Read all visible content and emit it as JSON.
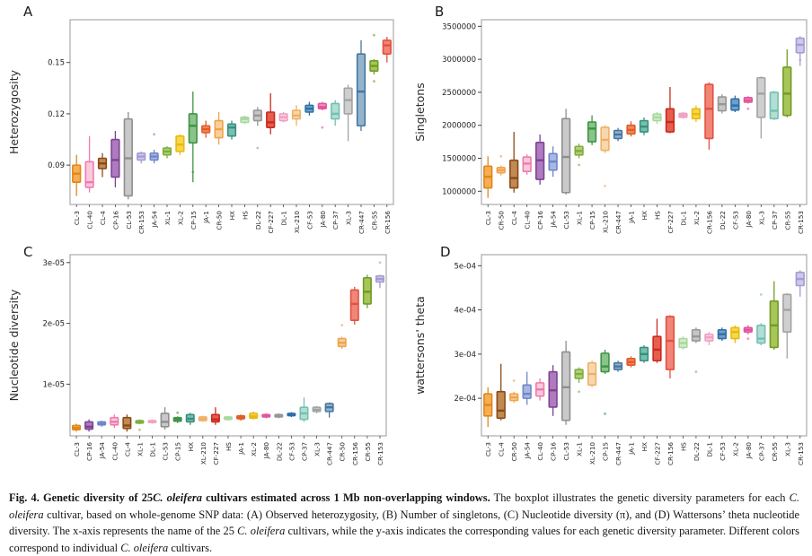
{
  "figure": {
    "caption_segments": [
      {
        "text": "Fig. 4. ",
        "bold": true
      },
      {
        "text": "Genetic diversity of 25",
        "bold": true
      },
      {
        "text": "C. oleifera",
        "bold": true,
        "italic": true
      },
      {
        "text": " cultivars estimated across 1 Mb non-overlapping windows.",
        "bold": true
      },
      {
        "text": " The boxplot illustrates the genetic diversity parameters for each "
      },
      {
        "text": "C. oleifera",
        "italic": true
      },
      {
        "text": " cultivar, based on whole-genome SNP data: (A) Observed heterozygosity, (B) Number of singletons, (C) Nucleotide diversity (π), and (D) Wattersons’ theta nucleotide diversity. The x-axis represents the name of the 25 "
      },
      {
        "text": "C. oleifera",
        "italic": true
      },
      {
        "text": " cultivars, while the y-axis indicates the corresponding values for each genetic diversity parameter. Different colors correspond to individual "
      },
      {
        "text": "C. oleifera",
        "italic": true
      },
      {
        "text": " cultivars."
      }
    ]
  },
  "palette": {
    "CL-3": {
      "stroke": "#E0861C",
      "fill": "#F6AE52"
    },
    "CL-40": {
      "stroke": "#EF7BAC",
      "fill": "#F9C9DE"
    },
    "CL-4": {
      "stroke": "#8A4A18",
      "fill": "#C18A50"
    },
    "CP-16": {
      "stroke": "#7E4295",
      "fill": "#AF7BBF"
    },
    "CL-53": {
      "stroke": "#8E8E8E",
      "fill": "#C9C9C9"
    },
    "CR-153": {
      "stroke": "#A59BD3",
      "fill": "#CEC8EA"
    },
    "JA-54": {
      "stroke": "#6F86C8",
      "fill": "#A9B7E3"
    },
    "XL-1": {
      "stroke": "#7FAE3E",
      "fill": "#B2CF77"
    },
    "XL-2": {
      "stroke": "#E9B90F",
      "fill": "#F6D84A"
    },
    "CP-15": {
      "stroke": "#3F9347",
      "fill": "#8AC48A"
    },
    "JA-1": {
      "stroke": "#E25A2A",
      "fill": "#F0895C"
    },
    "CR-50": {
      "stroke": "#F0A24B",
      "fill": "#F8CF9E"
    },
    "HX": {
      "stroke": "#37917F",
      "fill": "#79BEAF"
    },
    "HS": {
      "stroke": "#A8D89E",
      "fill": "#D2EBCB"
    },
    "DL-22": {
      "stroke": "#979797",
      "fill": "#C6C6C6"
    },
    "CF-227": {
      "stroke": "#C92A20",
      "fill": "#E65E4D"
    },
    "DL-1": {
      "stroke": "#F0A0C2",
      "fill": "#F9CFE0"
    },
    "XL-210": {
      "stroke": "#EFB066",
      "fill": "#F7D8AE"
    },
    "CF-53": {
      "stroke": "#2F6FA7",
      "fill": "#6E9FCB"
    },
    "JA-80": {
      "stroke": "#E2559E",
      "fill": "#EF90C2"
    },
    "CP-37": {
      "stroke": "#72C0B2",
      "fill": "#B2DED4"
    },
    "XL-3": {
      "stroke": "#A3A3A3",
      "fill": "#CFCFCF"
    },
    "CR-447": {
      "stroke": "#47769F",
      "fill": "#93B4CD"
    },
    "CR-55": {
      "stroke": "#709B28",
      "fill": "#A8C558"
    },
    "CR-156": {
      "stroke": "#E25140",
      "fill": "#F18577"
    }
  },
  "chart_data": [
    {
      "panel": "A",
      "type": "boxplot",
      "ylabel": "Heterozygosity",
      "yticks": [
        0.09,
        0.12,
        0.15
      ],
      "ytick_labels": [
        "0.09",
        "0.12",
        "0.15"
      ],
      "ylim": [
        0.067,
        0.175
      ],
      "categories": [
        "CL-3",
        "CL-40",
        "CL-4",
        "CP-16",
        "CL-53",
        "CR-153",
        "JA-54",
        "XL-1",
        "XL-2",
        "CP-15",
        "JA-1",
        "CR-50",
        "HX",
        "HS",
        "DL-22",
        "CF-227",
        "DL-1",
        "XL-210",
        "CF-53",
        "JA-80",
        "CP-37",
        "XL-3",
        "CR-447",
        "CR-55",
        "CR-156"
      ],
      "boxes": [
        [
          0.072,
          0.08,
          0.085,
          0.09,
          0.096
        ],
        [
          0.074,
          0.077,
          0.08,
          0.092,
          0.107
        ],
        [
          0.083,
          0.088,
          0.091,
          0.094,
          0.097
        ],
        [
          0.077,
          0.083,
          0.093,
          0.105,
          0.11
        ],
        [
          0.07,
          0.072,
          0.094,
          0.117,
          0.121
        ],
        [
          0.091,
          0.093,
          0.095,
          0.097,
          0.098
        ],
        [
          0.091,
          0.093,
          0.095,
          0.097,
          0.099
        ],
        [
          0.094,
          0.096,
          0.098,
          0.1,
          0.101
        ],
        [
          0.096,
          0.098,
          0.102,
          0.107,
          0.108
        ],
        [
          0.08,
          0.103,
          0.113,
          0.12,
          0.133
        ],
        [
          0.106,
          0.109,
          0.111,
          0.113,
          0.116
        ],
        [
          0.102,
          0.106,
          0.111,
          0.116,
          0.121
        ],
        [
          0.105,
          0.107,
          0.112,
          0.114,
          0.116
        ],
        [
          0.114,
          0.115,
          0.117,
          0.118,
          0.119
        ],
        [
          0.113,
          0.116,
          0.119,
          0.122,
          0.124
        ],
        [
          0.108,
          0.112,
          0.115,
          0.121,
          0.132
        ],
        [
          0.115,
          0.116,
          0.118,
          0.12,
          0.121
        ],
        [
          0.113,
          0.117,
          0.119,
          0.122,
          0.125
        ],
        [
          0.119,
          0.121,
          0.123,
          0.125,
          0.127
        ],
        [
          0.122,
          0.123,
          0.124,
          0.126,
          0.127
        ],
        [
          0.113,
          0.117,
          0.12,
          0.126,
          0.128
        ],
        [
          0.104,
          0.12,
          0.128,
          0.135,
          0.137
        ],
        [
          0.11,
          0.113,
          0.133,
          0.155,
          0.163
        ],
        [
          0.143,
          0.145,
          0.148,
          0.151,
          0.152
        ],
        [
          0.15,
          0.155,
          0.16,
          0.163,
          0.165
        ]
      ],
      "outliers": [
        [],
        [],
        [],
        [],
        [],
        [],
        [
          0.108
        ],
        [],
        [],
        [
          0.086
        ],
        [],
        [],
        [],
        [],
        [
          0.1
        ],
        [],
        [],
        [],
        [],
        [
          0.112
        ],
        [],
        [],
        [],
        [
          0.139,
          0.166
        ],
        []
      ]
    },
    {
      "panel": "B",
      "type": "boxplot",
      "ylabel": "Singletons",
      "yticks": [
        1000000,
        1500000,
        2000000,
        2500000,
        3000000,
        3500000
      ],
      "ytick_labels": [
        "1000000",
        "1500000",
        "2000000",
        "2500000",
        "3000000",
        "3500000"
      ],
      "ylim": [
        800000,
        3600000
      ],
      "categories": [
        "CL-3",
        "CR-50",
        "CL-4",
        "CL-40",
        "CP-16",
        "JA-54",
        "CL-53",
        "XL-1",
        "CP-15",
        "XL-210",
        "CR-447",
        "JA-1",
        "HX",
        "HS",
        "CF-227",
        "DL-1",
        "XL-2",
        "CR-156",
        "DL-22",
        "CF-53",
        "JA-80",
        "XL-3",
        "CP-37",
        "CR-55",
        "CR-153"
      ],
      "boxes": [
        [
          900000,
          1050000,
          1220000,
          1380000,
          1530000
        ],
        [
          1240000,
          1280000,
          1320000,
          1360000,
          1390000
        ],
        [
          980000,
          1050000,
          1200000,
          1470000,
          1900000
        ],
        [
          1250000,
          1300000,
          1420000,
          1520000,
          1560000
        ],
        [
          1100000,
          1180000,
          1470000,
          1740000,
          1860000
        ],
        [
          1220000,
          1320000,
          1450000,
          1570000,
          1680000
        ],
        [
          950000,
          980000,
          1520000,
          2100000,
          2250000
        ],
        [
          1500000,
          1550000,
          1610000,
          1680000,
          1720000
        ],
        [
          1700000,
          1750000,
          1950000,
          2050000,
          2150000
        ],
        [
          1580000,
          1620000,
          1780000,
          1970000,
          2000000
        ],
        [
          1760000,
          1800000,
          1860000,
          1920000,
          1960000
        ],
        [
          1830000,
          1870000,
          1930000,
          2000000,
          2060000
        ],
        [
          1850000,
          1900000,
          1980000,
          2070000,
          2120000
        ],
        [
          2020000,
          2070000,
          2120000,
          2170000,
          2200000
        ],
        [
          1880000,
          1900000,
          2050000,
          2250000,
          2580000
        ],
        [
          2100000,
          2120000,
          2150000,
          2180000,
          2200000
        ],
        [
          2050000,
          2100000,
          2170000,
          2250000,
          2300000
        ],
        [
          1630000,
          1800000,
          2250000,
          2620000,
          2650000
        ],
        [
          2180000,
          2220000,
          2320000,
          2430000,
          2470000
        ],
        [
          2200000,
          2230000,
          2300000,
          2400000,
          2450000
        ],
        [
          2330000,
          2350000,
          2380000,
          2420000,
          2440000
        ],
        [
          1800000,
          2120000,
          2480000,
          2720000,
          2740000
        ],
        [
          2080000,
          2100000,
          2220000,
          2500000,
          2520000
        ],
        [
          2120000,
          2150000,
          2480000,
          2880000,
          3150000
        ],
        [
          2900000,
          3100000,
          3220000,
          3320000,
          3350000
        ]
      ],
      "outliers": [
        [],
        [
          1530000
        ],
        [],
        [],
        [],
        [],
        [],
        [
          1400000
        ],
        [],
        [
          1080000
        ],
        [],
        [],
        [],
        [],
        [],
        [],
        [],
        [],
        [],
        [],
        [
          2250000
        ],
        [],
        [],
        [],
        [
          2990000
        ]
      ]
    },
    {
      "panel": "C",
      "type": "boxplot",
      "ylabel": "Nucleotide diversity",
      "yticks": [
        1e-05,
        2e-05,
        3e-05
      ],
      "ytick_labels": [
        "1e-05",
        "2e-05",
        "3e-05"
      ],
      "ylim": [
        1.5e-06,
        3.13e-05
      ],
      "categories": [
        "CL-3",
        "CP-16",
        "JA-54",
        "CL-40",
        "CL-4",
        "XL-1",
        "DL-1",
        "CL-53",
        "CP-15",
        "HX",
        "XL-210",
        "CF-227",
        "HS",
        "JA-1",
        "XL-2",
        "JA-80",
        "DL-22",
        "CF-53",
        "CP-37",
        "XL-3",
        "CR-447",
        "CR-50",
        "CR-156",
        "CR-55",
        "CR-153"
      ],
      "boxes": [
        [
          2.2e-06,
          2.5e-06,
          2.8e-06,
          3.2e-06,
          3.5e-06
        ],
        [
          2.2e-06,
          2.6e-06,
          3e-06,
          3.8e-06,
          4.2e-06
        ],
        [
          3e-06,
          3.3e-06,
          3.5e-06,
          3.8e-06,
          4e-06
        ],
        [
          2.8e-06,
          3.3e-06,
          3.8e-06,
          4.5e-06,
          5e-06
        ],
        [
          2.2e-06,
          2.7e-06,
          3.2e-06,
          4.5e-06,
          5e-06
        ],
        [
          3.4e-06,
          3.6e-06,
          3.8e-06,
          4e-06,
          4.2e-06
        ],
        [
          3.5e-06,
          3.7e-06,
          3.8e-06,
          4e-06,
          4.2e-06
        ],
        [
          2.5e-06,
          3e-06,
          3.8e-06,
          5.2e-06,
          6.2e-06
        ],
        [
          3.6e-06,
          3.9e-06,
          4.2e-06,
          4.5e-06,
          4.7e-06
        ],
        [
          3.3e-06,
          3.8e-06,
          4.3e-06,
          5e-06,
          5.3e-06
        ],
        [
          3.8e-06,
          4e-06,
          4.3e-06,
          4.6e-06,
          4.8e-06
        ],
        [
          3.3e-06,
          3.8e-06,
          4.2e-06,
          5e-06,
          6.2e-06
        ],
        [
          4e-06,
          4.2e-06,
          4.4e-06,
          4.6e-06,
          4.7e-06
        ],
        [
          4e-06,
          4.3e-06,
          4.5e-06,
          4.8e-06,
          5e-06
        ],
        [
          4.2e-06,
          4.4e-06,
          4.7e-06,
          5.2e-06,
          5.5e-06
        ],
        [
          4.4e-06,
          4.6e-06,
          4.8e-06,
          5e-06,
          5.2e-06
        ],
        [
          4.4e-06,
          4.6e-06,
          4.8e-06,
          5e-06,
          5.2e-06
        ],
        [
          4.6e-06,
          4.8e-06,
          5e-06,
          5.2e-06,
          5.4e-06
        ],
        [
          3.8e-06,
          4.2e-06,
          5.2e-06,
          6.2e-06,
          7.8e-06
        ],
        [
          5.2e-06,
          5.5e-06,
          5.8e-06,
          6.2e-06,
          6.4e-06
        ],
        [
          4.5e-06,
          5.5e-06,
          6.2e-06,
          6.8e-06,
          7e-06
        ],
        [
          1.58e-05,
          1.62e-05,
          1.68e-05,
          1.75e-05,
          1.78e-05
        ],
        [
          1.98e-05,
          2.05e-05,
          2.32e-05,
          2.55e-05,
          2.6e-05
        ],
        [
          2.25e-05,
          2.32e-05,
          2.52e-05,
          2.75e-05,
          2.8e-05
        ],
        [
          2.58e-05,
          2.68e-05,
          2.73e-05,
          2.78e-05,
          2.8e-05
        ]
      ],
      "outliers": [
        [],
        [],
        [],
        [],
        [],
        [
          2.5e-06
        ],
        [],
        [],
        [
          5.3e-06
        ],
        [],
        [],
        [],
        [],
        [],
        [],
        [],
        [],
        [],
        [],
        [],
        [],
        [
          1.97e-05
        ],
        [],
        [],
        [
          3e-05
        ]
      ]
    },
    {
      "panel": "D",
      "type": "boxplot",
      "ylabel": "wattersons' theta",
      "yticks": [
        0.0002,
        0.0003,
        0.0004,
        0.0005
      ],
      "ytick_labels": [
        "2e-04",
        "3e-04",
        "4e-04",
        "5e-04"
      ],
      "ylim": [
        0.000115,
        0.000525
      ],
      "categories": [
        "CL-3",
        "CL-4",
        "CR-50",
        "JA-54",
        "CL-40",
        "CP-16",
        "CL-53",
        "XL-1",
        "XL-210",
        "CP-15",
        "CR-447",
        "JA-1",
        "HX",
        "CF-227",
        "CR-156",
        "HS",
        "DL-22",
        "DL-1",
        "CF-53",
        "XL-2",
        "JA-80",
        "CP-37",
        "CR-55",
        "XL-3",
        "CR-153"
      ],
      "boxes": [
        [
          0.000135,
          0.00016,
          0.000185,
          0.00021,
          0.000225
        ],
        [
          0.00015,
          0.000155,
          0.000172,
          0.000215,
          0.000278
        ],
        [
          0.00019,
          0.000195,
          0.000202,
          0.00021,
          0.000215
        ],
        [
          0.000185,
          0.0002,
          0.00021,
          0.00023,
          0.00026
        ],
        [
          0.000195,
          0.000205,
          0.00022,
          0.000235,
          0.000245
        ],
        [
          0.00016,
          0.00018,
          0.000218,
          0.00026,
          0.000275
        ],
        [
          0.00014,
          0.00015,
          0.000225,
          0.000305,
          0.00033
        ],
        [
          0.000235,
          0.000245,
          0.000255,
          0.000265,
          0.00027
        ],
        [
          0.000225,
          0.00023,
          0.000255,
          0.00028,
          0.000285
        ],
        [
          0.000255,
          0.00026,
          0.000272,
          0.000302,
          0.00031
        ],
        [
          0.00026,
          0.000265,
          0.000272,
          0.00028,
          0.000285
        ],
        [
          0.00027,
          0.000275,
          0.000282,
          0.00029,
          0.000295
        ],
        [
          0.00028,
          0.000285,
          0.0003,
          0.000315,
          0.00032
        ],
        [
          0.00028,
          0.000285,
          0.00031,
          0.00034,
          0.00038
        ],
        [
          0.000245,
          0.000265,
          0.00033,
          0.000385,
          0.000388
        ],
        [
          0.00031,
          0.000315,
          0.000325,
          0.000335,
          0.00034
        ],
        [
          0.000325,
          0.00033,
          0.00034,
          0.000355,
          0.00036
        ],
        [
          0.00032,
          0.00033,
          0.000338,
          0.000345,
          0.00035
        ],
        [
          0.00033,
          0.000335,
          0.000345,
          0.000355,
          0.00036
        ],
        [
          0.000325,
          0.000335,
          0.00035,
          0.00036,
          0.000365
        ],
        [
          0.000345,
          0.00035,
          0.000355,
          0.00036,
          0.000365
        ],
        [
          0.00032,
          0.000325,
          0.000335,
          0.000365,
          0.00037
        ],
        [
          0.00031,
          0.000315,
          0.000365,
          0.00042,
          0.000465
        ],
        [
          0.00029,
          0.00035,
          0.0004,
          0.000435,
          0.000438
        ],
        [
          0.00043,
          0.000455,
          0.00047,
          0.000485,
          0.00049
        ]
      ],
      "outliers": [
        [],
        [],
        [
          0.00024
        ],
        [],
        [],
        [],
        [],
        [
          0.000215
        ],
        [],
        [
          0.000165
        ],
        [],
        [],
        [],
        [],
        [],
        [],
        [
          0.00026
        ],
        [],
        [],
        [],
        [
          0.000335
        ],
        [
          0.000435
        ],
        [],
        [],
        []
      ]
    }
  ]
}
